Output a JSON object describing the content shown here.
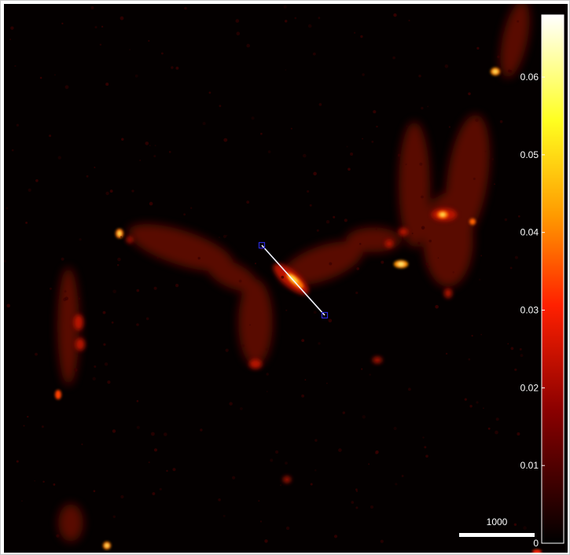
{
  "colorbar": {
    "ticks": [
      "0.06",
      "0.05",
      "0.04",
      "0.03",
      "0.02",
      "0.01",
      "0"
    ],
    "tick_values": [
      0.06,
      0.05,
      0.04,
      0.03,
      0.02,
      0.01,
      0
    ],
    "max_value": 0.068,
    "colormap": "hot",
    "colors": [
      "#000000",
      "#8a0000",
      "#ff2000",
      "#ff9a00",
      "#ffff20",
      "#ffffff"
    ]
  },
  "scale_bar": {
    "label": "1000"
  },
  "colors": {
    "background": "#040000",
    "selection_line": "#f4f4ff",
    "handle": "#2a2ad8"
  }
}
